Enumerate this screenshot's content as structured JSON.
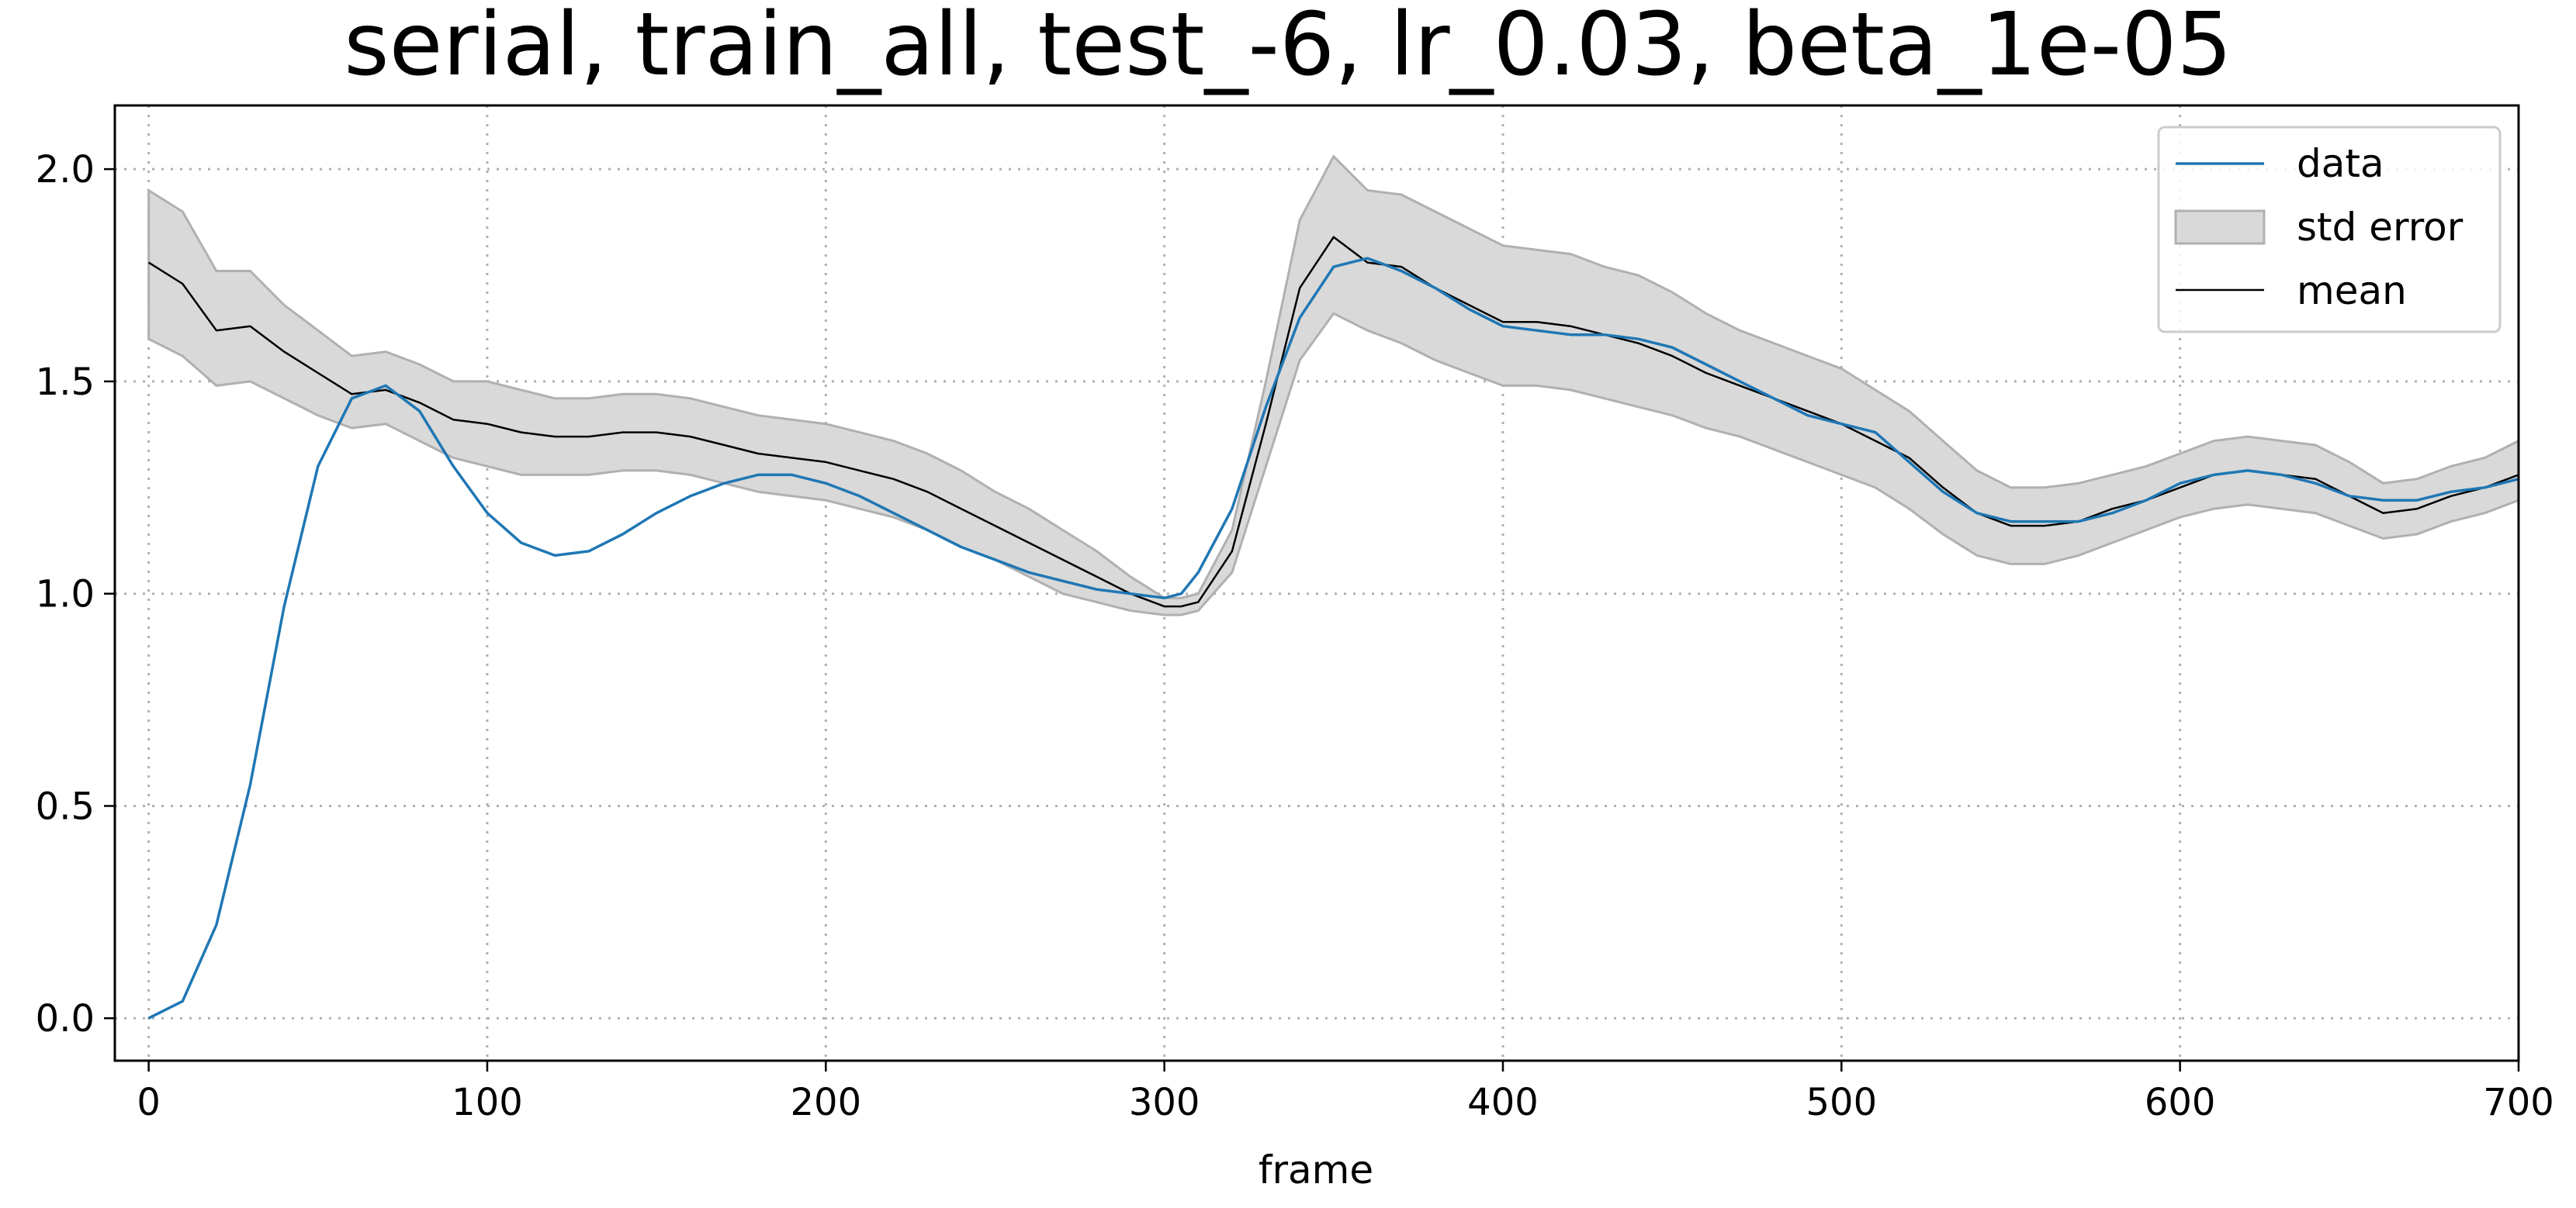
{
  "chart_data": {
    "type": "line",
    "title": "serial, train_all, test_-6, lr_0.03, beta_1e-05",
    "xlabel": "frame",
    "ylabel": "",
    "xlim": [
      -10,
      700
    ],
    "ylim": [
      -0.1,
      2.15
    ],
    "xticks": [
      0,
      100,
      200,
      300,
      400,
      500,
      600,
      700
    ],
    "yticks": [
      0.0,
      0.5,
      1.0,
      1.5,
      2.0
    ],
    "xtick_labels": [
      "0",
      "100",
      "200",
      "300",
      "400",
      "500",
      "600",
      "700"
    ],
    "ytick_labels": [
      "0.0",
      "0.5",
      "1.0",
      "1.5",
      "2.0"
    ],
    "grid": true,
    "legend_position": "top-right",
    "legend": [
      "data",
      "std error",
      "mean"
    ],
    "colors": {
      "data": "#1f77b4",
      "mean": "#000000",
      "band_fill": "#d9d9d9",
      "band_edge": "#b0b0b0"
    },
    "x": [
      0,
      10,
      20,
      30,
      40,
      50,
      60,
      70,
      80,
      90,
      100,
      110,
      120,
      130,
      140,
      150,
      160,
      170,
      180,
      190,
      200,
      210,
      220,
      230,
      240,
      250,
      260,
      270,
      280,
      290,
      300,
      305,
      310,
      320,
      330,
      340,
      350,
      360,
      370,
      380,
      390,
      400,
      410,
      420,
      430,
      440,
      450,
      460,
      470,
      480,
      490,
      500,
      510,
      520,
      530,
      540,
      550,
      560,
      570,
      580,
      590,
      600,
      610,
      620,
      630,
      640,
      650,
      660,
      670,
      680,
      690,
      700
    ],
    "series": [
      {
        "name": "data",
        "values": [
          0.0,
          0.04,
          0.22,
          0.55,
          0.97,
          1.3,
          1.46,
          1.49,
          1.43,
          1.3,
          1.19,
          1.12,
          1.09,
          1.1,
          1.14,
          1.19,
          1.23,
          1.26,
          1.28,
          1.28,
          1.26,
          1.23,
          1.19,
          1.15,
          1.11,
          1.08,
          1.05,
          1.03,
          1.01,
          1.0,
          0.99,
          1.0,
          1.05,
          1.2,
          1.44,
          1.65,
          1.77,
          1.79,
          1.76,
          1.72,
          1.67,
          1.63,
          1.62,
          1.61,
          1.61,
          1.6,
          1.58,
          1.54,
          1.5,
          1.46,
          1.42,
          1.4,
          1.38,
          1.31,
          1.24,
          1.19,
          1.17,
          1.17,
          1.17,
          1.19,
          1.22,
          1.26,
          1.28,
          1.29,
          1.28,
          1.26,
          1.23,
          1.22,
          1.22,
          1.24,
          1.25,
          1.27
        ]
      },
      {
        "name": "mean",
        "values": [
          1.78,
          1.73,
          1.62,
          1.63,
          1.57,
          1.52,
          1.47,
          1.48,
          1.45,
          1.41,
          1.4,
          1.38,
          1.37,
          1.37,
          1.38,
          1.38,
          1.37,
          1.35,
          1.33,
          1.32,
          1.31,
          1.29,
          1.27,
          1.24,
          1.2,
          1.16,
          1.12,
          1.08,
          1.04,
          1.0,
          0.97,
          0.97,
          0.98,
          1.1,
          1.4,
          1.72,
          1.84,
          1.78,
          1.77,
          1.72,
          1.68,
          1.64,
          1.64,
          1.63,
          1.61,
          1.59,
          1.56,
          1.52,
          1.49,
          1.46,
          1.43,
          1.4,
          1.36,
          1.32,
          1.25,
          1.19,
          1.16,
          1.16,
          1.17,
          1.2,
          1.22,
          1.25,
          1.28,
          1.29,
          1.28,
          1.27,
          1.23,
          1.19,
          1.2,
          1.23,
          1.25,
          1.28
        ]
      },
      {
        "name": "std error",
        "lower": [
          1.6,
          1.56,
          1.49,
          1.5,
          1.46,
          1.42,
          1.39,
          1.4,
          1.36,
          1.32,
          1.3,
          1.28,
          1.28,
          1.28,
          1.29,
          1.29,
          1.28,
          1.26,
          1.24,
          1.23,
          1.22,
          1.2,
          1.18,
          1.15,
          1.11,
          1.08,
          1.04,
          1.0,
          0.98,
          0.96,
          0.95,
          0.95,
          0.96,
          1.05,
          1.3,
          1.55,
          1.66,
          1.62,
          1.59,
          1.55,
          1.52,
          1.49,
          1.49,
          1.48,
          1.46,
          1.44,
          1.42,
          1.39,
          1.37,
          1.34,
          1.31,
          1.28,
          1.25,
          1.2,
          1.14,
          1.09,
          1.07,
          1.07,
          1.09,
          1.12,
          1.15,
          1.18,
          1.2,
          1.21,
          1.2,
          1.19,
          1.16,
          1.13,
          1.14,
          1.17,
          1.19,
          1.22
        ],
        "upper": [
          1.95,
          1.9,
          1.76,
          1.76,
          1.68,
          1.62,
          1.56,
          1.57,
          1.54,
          1.5,
          1.5,
          1.48,
          1.46,
          1.46,
          1.47,
          1.47,
          1.46,
          1.44,
          1.42,
          1.41,
          1.4,
          1.38,
          1.36,
          1.33,
          1.29,
          1.24,
          1.2,
          1.15,
          1.1,
          1.04,
          0.99,
          0.99,
          1.0,
          1.15,
          1.5,
          1.88,
          2.03,
          1.95,
          1.94,
          1.9,
          1.86,
          1.82,
          1.81,
          1.8,
          1.77,
          1.75,
          1.71,
          1.66,
          1.62,
          1.59,
          1.56,
          1.53,
          1.48,
          1.43,
          1.36,
          1.29,
          1.25,
          1.25,
          1.26,
          1.28,
          1.3,
          1.33,
          1.36,
          1.37,
          1.36,
          1.35,
          1.31,
          1.26,
          1.27,
          1.3,
          1.32,
          1.36
        ]
      }
    ]
  }
}
